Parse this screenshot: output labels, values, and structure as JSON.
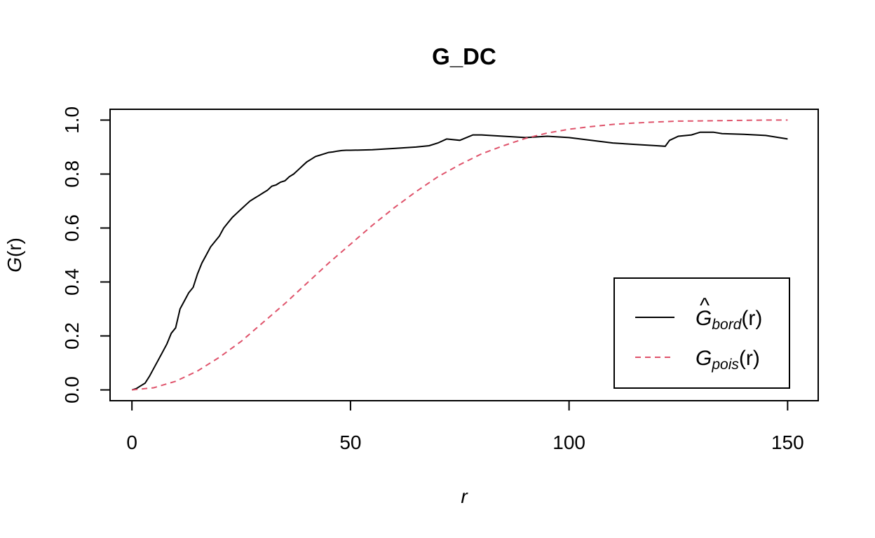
{
  "chart_data": {
    "type": "line",
    "title": "G_DC",
    "xlabel": "r",
    "ylabel_main": "G",
    "ylabel_arg": "(r)",
    "xlim": [
      -5,
      157
    ],
    "ylim": [
      -0.04,
      1.04
    ],
    "x_ticks": [
      0,
      50,
      100,
      150
    ],
    "x_tick_labels": [
      "0",
      "50",
      "100",
      "150"
    ],
    "y_ticks": [
      0,
      0.2,
      0.4,
      0.6,
      0.8,
      1.0
    ],
    "y_tick_labels": [
      "0.0",
      "0.2",
      "0.4",
      "0.6",
      "0.8",
      "1.0"
    ],
    "grid": false,
    "legend_position": "bottom-right",
    "series": [
      {
        "legend_main": "G",
        "legend_hat": "^",
        "legend_sub": "bord",
        "legend_arg": "(r)",
        "color": "#000000",
        "dash": "solid",
        "x": [
          0,
          1,
          2,
          3,
          4,
          5,
          6,
          7,
          8,
          9,
          10,
          11,
          12,
          13,
          14,
          15,
          16,
          17,
          18,
          19,
          20,
          21,
          22,
          23,
          24,
          25,
          26,
          27,
          28,
          29,
          30,
          31,
          32,
          33,
          34,
          35,
          36,
          37,
          38,
          39,
          40,
          41,
          42,
          43,
          44,
          45,
          46,
          47,
          48,
          49,
          50,
          55,
          60,
          65,
          68,
          70,
          72,
          75,
          78,
          80,
          85,
          90,
          95,
          100,
          105,
          110,
          115,
          120,
          122,
          123,
          125,
          128,
          130,
          133,
          135,
          140,
          145,
          150
        ],
        "y": [
          0,
          0.005,
          0.015,
          0.025,
          0.05,
          0.08,
          0.11,
          0.14,
          0.17,
          0.21,
          0.23,
          0.3,
          0.33,
          0.36,
          0.38,
          0.43,
          0.47,
          0.5,
          0.53,
          0.55,
          0.57,
          0.6,
          0.62,
          0.64,
          0.655,
          0.67,
          0.685,
          0.7,
          0.71,
          0.72,
          0.73,
          0.74,
          0.755,
          0.76,
          0.77,
          0.775,
          0.79,
          0.8,
          0.815,
          0.83,
          0.845,
          0.855,
          0.865,
          0.87,
          0.875,
          0.88,
          0.882,
          0.885,
          0.887,
          0.888,
          0.888,
          0.89,
          0.895,
          0.9,
          0.905,
          0.915,
          0.93,
          0.925,
          0.945,
          0.945,
          0.94,
          0.935,
          0.94,
          0.935,
          0.925,
          0.915,
          0.91,
          0.905,
          0.903,
          0.925,
          0.94,
          0.945,
          0.955,
          0.955,
          0.95,
          0.947,
          0.943,
          0.93
        ]
      },
      {
        "legend_main": "G",
        "legend_hat": "",
        "legend_sub": "pois",
        "legend_arg": "(r)",
        "color": "#DF536B",
        "dash": "dashed",
        "x": [
          0,
          5,
          10,
          15,
          20,
          25,
          30,
          35,
          40,
          45,
          50,
          55,
          60,
          65,
          70,
          75,
          80,
          85,
          90,
          95,
          100,
          105,
          110,
          115,
          120,
          125,
          130,
          135,
          140,
          145,
          150
        ],
        "y": [
          0,
          0.008,
          0.032,
          0.07,
          0.121,
          0.18,
          0.25,
          0.32,
          0.395,
          0.47,
          0.54,
          0.61,
          0.675,
          0.735,
          0.79,
          0.835,
          0.875,
          0.905,
          0.932,
          0.952,
          0.966,
          0.976,
          0.984,
          0.989,
          0.993,
          0.996,
          0.997,
          0.998,
          0.999,
          1.0,
          1.0
        ]
      }
    ]
  }
}
